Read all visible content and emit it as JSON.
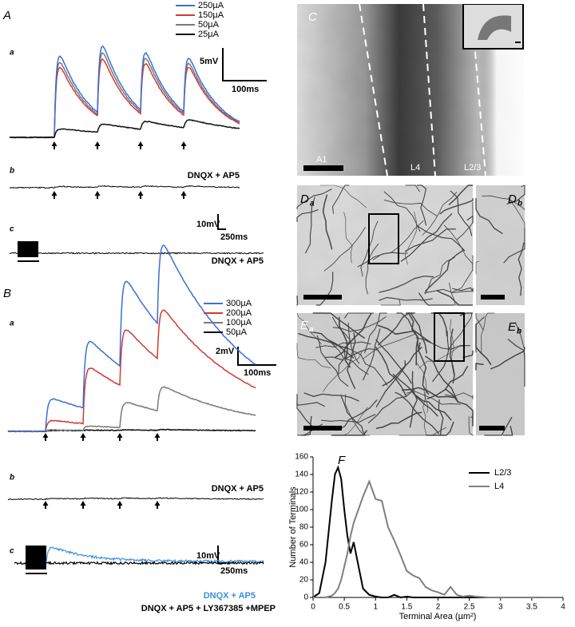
{
  "panel_a": {
    "label": "A",
    "sub_a": "a",
    "sub_b": "b",
    "sub_c": "c",
    "legend": [
      {
        "name": "250µA",
        "color": "#3b6fd6"
      },
      {
        "name": "150µA",
        "color": "#d23a32"
      },
      {
        "name": "50µA",
        "color": "#7a7a7a"
      },
      {
        "name": "25µA",
        "color": "#111111"
      }
    ],
    "scale_a": {
      "v": "5mV",
      "t": "100ms"
    },
    "drug_b": "DNQX + AP5",
    "scale_c": {
      "v": "10mV",
      "t": "250ms"
    },
    "drug_c": "DNQX + AP5"
  },
  "panel_b": {
    "label": "B",
    "sub_a": "a",
    "sub_b": "b",
    "sub_c": "c",
    "legend": [
      {
        "name": "300µA",
        "color": "#3b6fd6"
      },
      {
        "name": "200µA",
        "color": "#d23a32"
      },
      {
        "name": "100µA",
        "color": "#7a7a7a"
      },
      {
        "name": "50µA",
        "color": "#111111"
      }
    ],
    "scale_a": {
      "v": "2mV",
      "t": "100ms"
    },
    "drug_b": "DNQX + AP5",
    "scale_c": {
      "v": "10mV",
      "t": "250ms"
    },
    "drug_c1": "DNQX + AP5",
    "drug_c2": "DNQX + AP5 + LY367385 +MPEP"
  },
  "panel_c": {
    "label": "C",
    "layers": [
      "A1",
      "L4",
      "L2/3"
    ]
  },
  "panel_d": {
    "a": {
      "letter": "D",
      "sub": "a"
    },
    "b": {
      "letter": "D",
      "sub": "b"
    }
  },
  "panel_e": {
    "a": {
      "letter": "E",
      "sub": "a"
    },
    "b": {
      "letter": "E",
      "sub": "b"
    }
  },
  "chart_data": {
    "type": "line",
    "title": "F",
    "x_label": "Terminal Area (µm²)",
    "y_label": "Number of Terminals",
    "x": [
      0,
      0.1,
      0.2,
      0.3,
      0.35,
      0.4,
      0.45,
      0.5,
      0.55,
      0.6,
      0.65,
      0.7,
      0.8,
      0.9,
      1.0,
      1.1,
      1.2,
      1.3,
      1.4,
      1.5,
      1.6,
      1.7,
      1.8,
      1.9,
      2.0,
      2.1,
      2.2,
      2.3,
      2.4,
      2.5,
      2.6,
      2.8,
      3.0,
      3.2,
      3.4,
      3.6
    ],
    "series": [
      {
        "name": "L2/3",
        "color": "#000000",
        "values": [
          0,
          5,
          40,
          110,
          140,
          148,
          135,
          100,
          70,
          50,
          63,
          45,
          10,
          3,
          1,
          0,
          0,
          3,
          0,
          1,
          0,
          0,
          0,
          0,
          0,
          0,
          0,
          0,
          0,
          0,
          0,
          0,
          0,
          0,
          0,
          0
        ]
      },
      {
        "name": "L4",
        "color": "#7f7f7f",
        "values": [
          0,
          0,
          0,
          2,
          5,
          10,
          20,
          35,
          50,
          70,
          85,
          95,
          115,
          132,
          112,
          110,
          80,
          65,
          48,
          30,
          25,
          22,
          12,
          8,
          6,
          3,
          12,
          3,
          1,
          2,
          1,
          0,
          0,
          0,
          0,
          0
        ]
      }
    ],
    "xlim": [
      0,
      4
    ],
    "xticks": [
      0,
      0.5,
      1,
      1.5,
      2,
      2.5,
      3,
      3.5,
      4
    ],
    "ylim": [
      0,
      160
    ],
    "yticks": [
      0,
      20,
      40,
      60,
      80,
      100,
      120,
      140,
      160
    ],
    "legend": "upper right"
  }
}
